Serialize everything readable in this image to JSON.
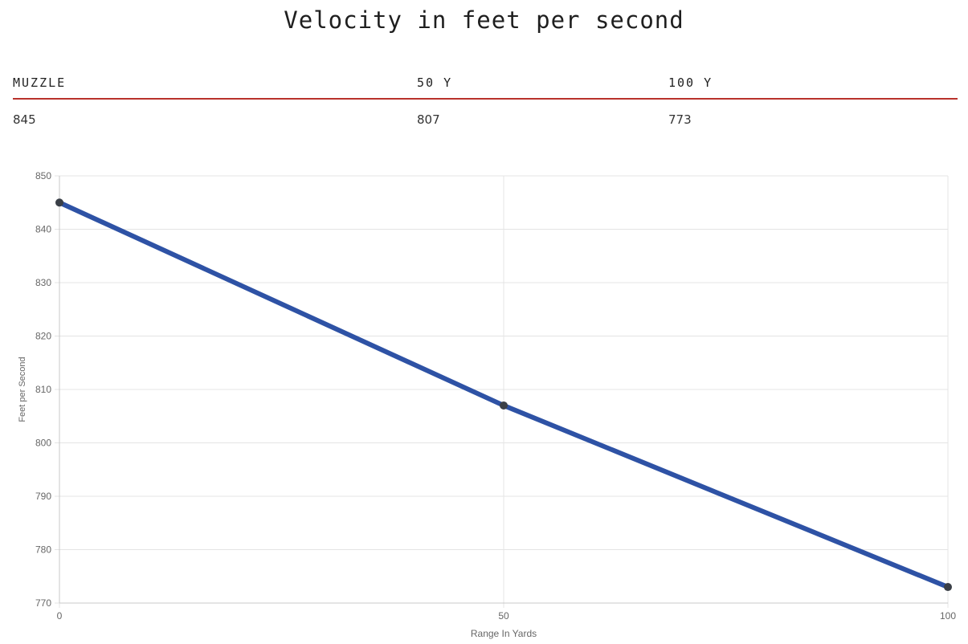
{
  "page": {
    "title": "Velocity in feet per second"
  },
  "table": {
    "headers": [
      "MUZZLE",
      "50 Y",
      "100 Y"
    ],
    "values": [
      "845",
      "807",
      "773"
    ]
  },
  "chart_data": {
    "type": "line",
    "title": "",
    "xlabel": "Range In Yards",
    "ylabel": "Feet per Second",
    "x": [
      0,
      50,
      100
    ],
    "series": [
      {
        "values": [
          845,
          807,
          773
        ]
      }
    ],
    "xlim": [
      0,
      100
    ],
    "ylim": [
      770,
      850
    ],
    "xticks": [
      0,
      50,
      100
    ],
    "yticks": [
      770,
      780,
      790,
      800,
      810,
      820,
      830,
      840,
      850
    ],
    "grid": true,
    "legend": "none",
    "colors": {
      "line": "#2e52a5",
      "point": "#3a3f47",
      "grid": "#e4e4e4",
      "axis": "#c9c9c9",
      "tick_text": "#666666"
    }
  }
}
